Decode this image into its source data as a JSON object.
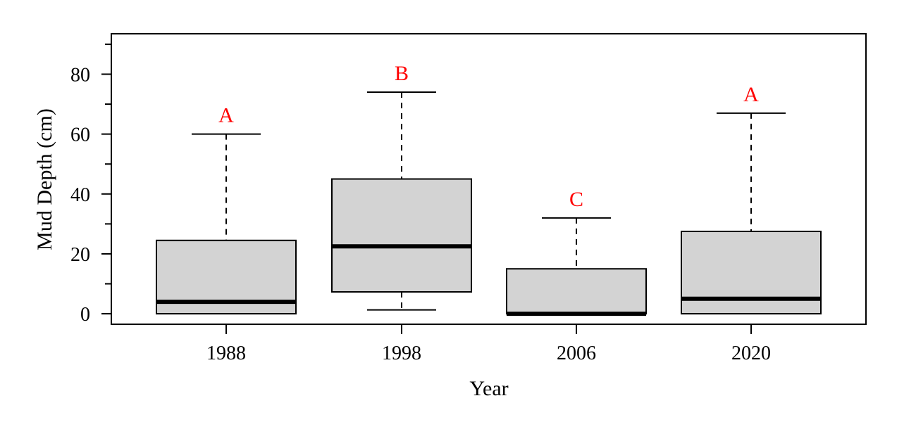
{
  "chart_data": {
    "type": "boxplot",
    "xlabel": "Year",
    "ylabel": "Mud Depth (cm)",
    "ylim": [
      -3.5,
      93.5
    ],
    "y_major_ticks": [
      0,
      20,
      40,
      60,
      80
    ],
    "y_minor_ticks": [
      10,
      30,
      50,
      70,
      90
    ],
    "categories": [
      "1988",
      "1998",
      "2006",
      "2020"
    ],
    "boxes": [
      {
        "category": "1988",
        "whisker_low": 0,
        "q1": 0,
        "median": 4,
        "q3": 24.5,
        "whisker_high": 60,
        "letter": "A"
      },
      {
        "category": "1998",
        "whisker_low": 1.3,
        "q1": 7.3,
        "median": 22.5,
        "q3": 45,
        "whisker_high": 74,
        "letter": "B"
      },
      {
        "category": "2006",
        "whisker_low": 0,
        "q1": 0,
        "median": 0,
        "q3": 15,
        "whisker_high": 32,
        "letter": "C"
      },
      {
        "category": "2020",
        "whisker_low": 0,
        "q1": 0,
        "median": 5,
        "q3": 27.5,
        "whisker_high": 67,
        "letter": "A"
      }
    ],
    "colors": {
      "box_fill": "#d3d3d3",
      "letter": "#ff0000",
      "line": "#000000"
    },
    "grid": false,
    "legend": "none"
  }
}
